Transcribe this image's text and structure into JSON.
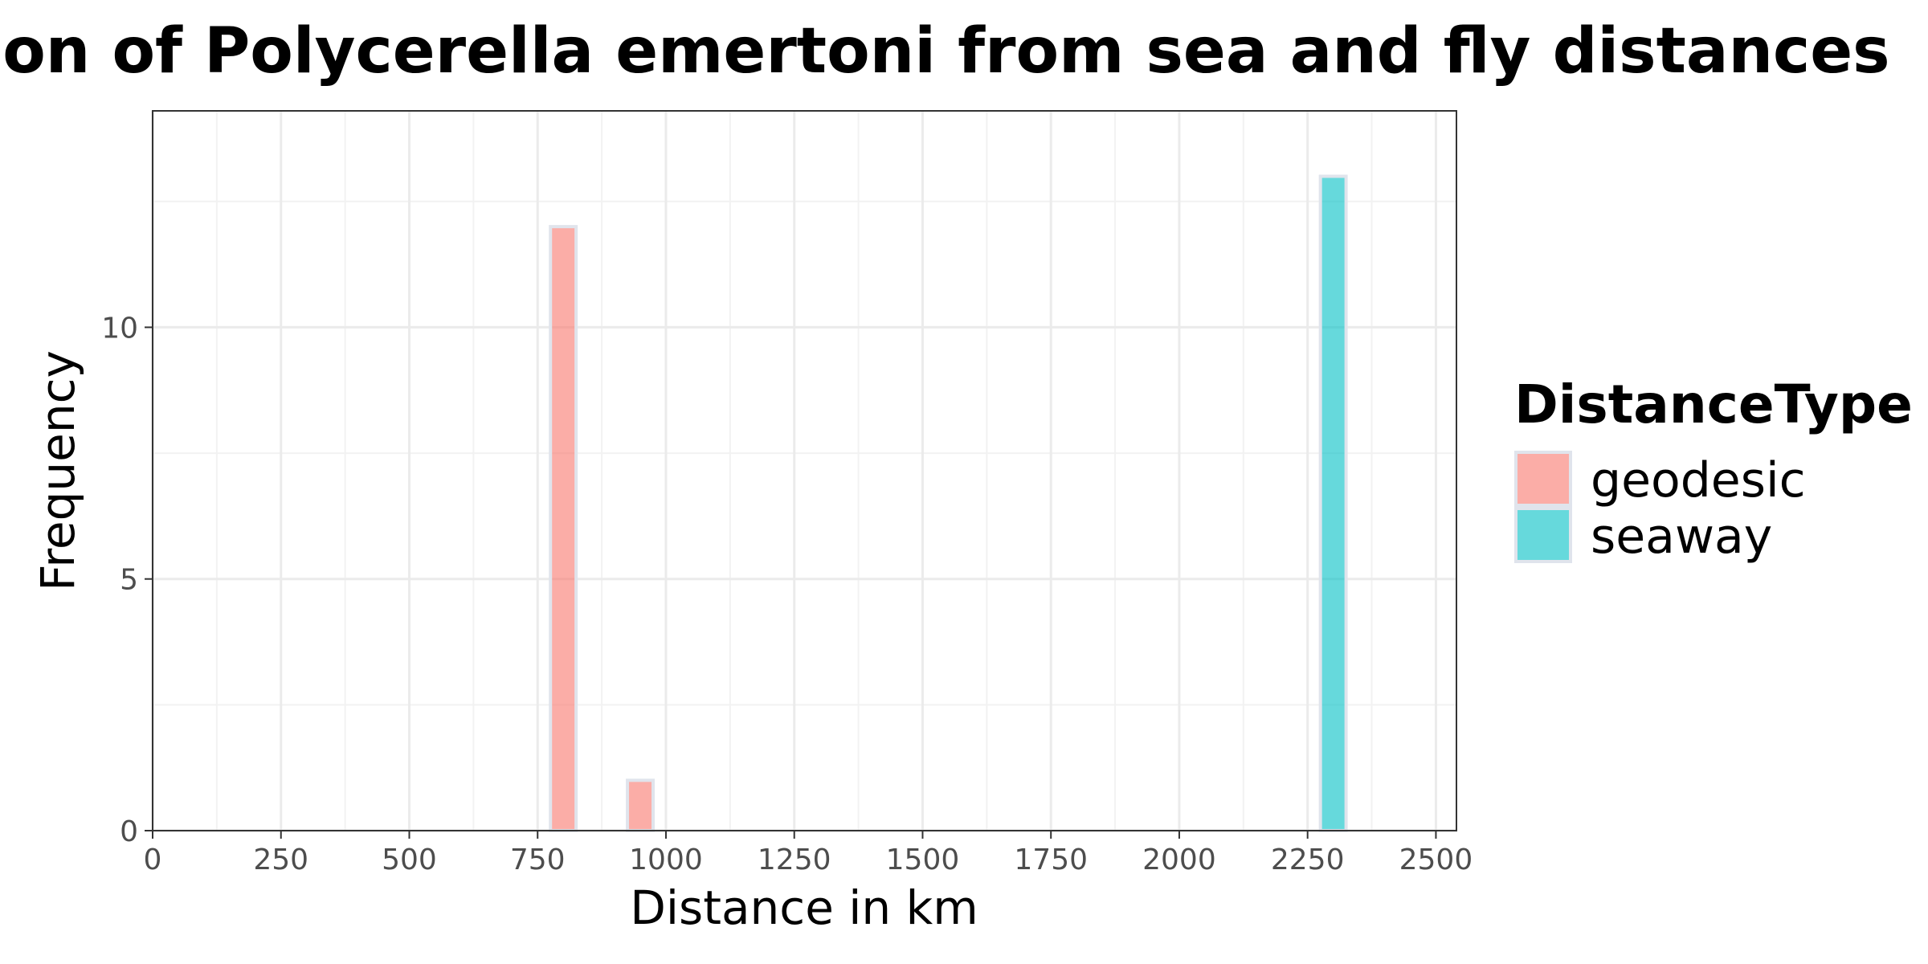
{
  "chart_data": {
    "type": "bar",
    "title": "Distribution of Polycerella emertoni from sea and fly distances",
    "xlabel": "Distance in km",
    "ylabel": "Frequency",
    "xlim": [
      0,
      2540
    ],
    "ylim": [
      0,
      14.3
    ],
    "x_ticks": [
      "0",
      "250",
      "500",
      "750",
      "1000",
      "1250",
      "1500",
      "1750",
      "2000",
      "2250",
      "2500"
    ],
    "y_ticks": [
      "0",
      "5",
      "10"
    ],
    "bin_width": 50,
    "grid": true,
    "legend": {
      "title": "DistanceType",
      "position": "right",
      "entries": [
        "geodesic",
        "seaway"
      ]
    },
    "series": [
      {
        "name": "geodesic",
        "color": "#F8766D",
        "bins": [
          {
            "x_start": 775,
            "x_end": 825,
            "count": 12
          },
          {
            "x_start": 925,
            "x_end": 975,
            "count": 1
          }
        ]
      },
      {
        "name": "seaway",
        "color": "#00BFC4",
        "bins": [
          {
            "x_start": 2275,
            "x_end": 2325,
            "count": 13
          }
        ]
      }
    ]
  }
}
